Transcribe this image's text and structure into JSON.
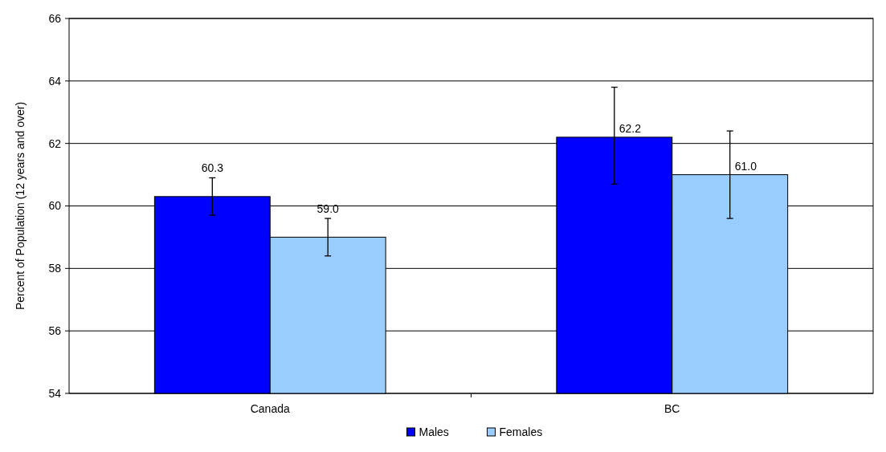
{
  "chart_data": {
    "type": "bar",
    "ylabel": "Percent of Population (12 years and over)",
    "categories": [
      "Canada",
      "BC"
    ],
    "series": [
      {
        "name": "Males",
        "color": "#0000ff",
        "values": [
          60.3,
          62.2
        ],
        "value_labels": [
          "60.3",
          "62.2"
        ],
        "errors": [
          0.6,
          [
            60.7,
            63.8
          ]
        ]
      },
      {
        "name": "Females",
        "color": "#99ccff",
        "values": [
          59.0,
          61.0
        ],
        "value_labels": [
          "59.0",
          "61.0"
        ],
        "errors": [
          0.6,
          [
            59.6,
            62.4
          ]
        ]
      }
    ],
    "ylim": [
      54,
      66
    ],
    "yticks": [
      54,
      56,
      58,
      60,
      62,
      64,
      66
    ],
    "grid": "y",
    "legend": "bottom"
  }
}
